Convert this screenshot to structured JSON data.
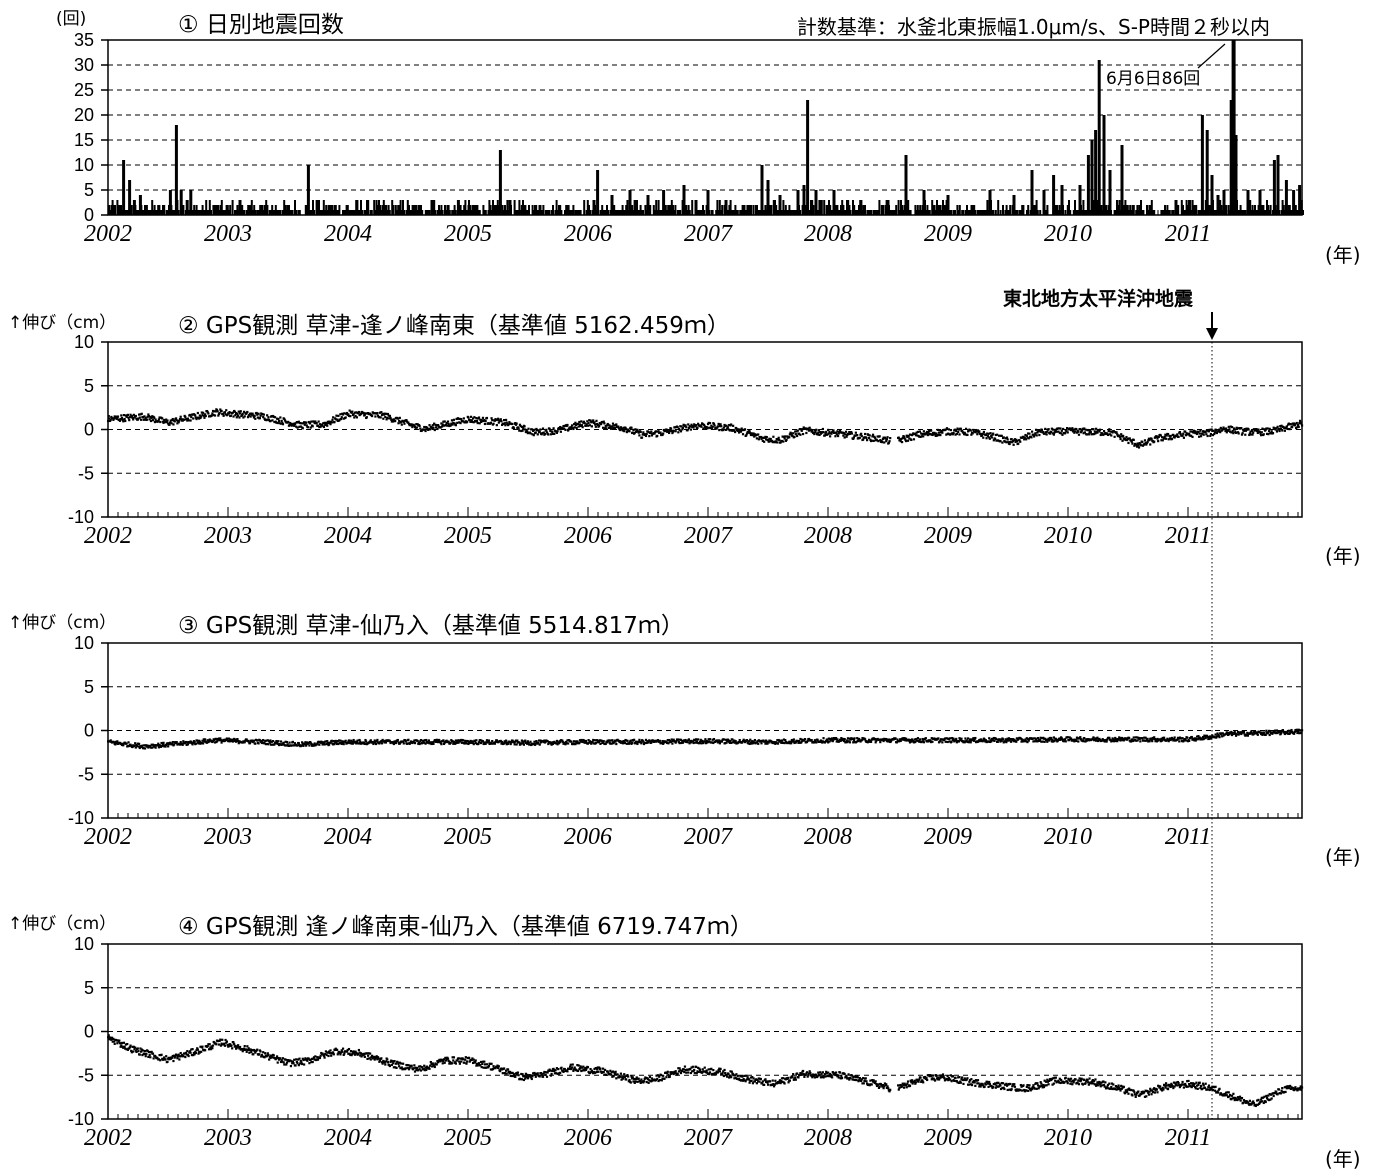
{
  "chart_data": [
    {
      "type": "bar",
      "title": "① 日別地震回数",
      "ylabel": "(回)",
      "xunit": "(年)",
      "note": "計数基準：水釜北東振幅1.0μm/s、S-P時間２秒以内",
      "annotation": "6月6日86回",
      "xlim": [
        2002.0,
        2011.95
      ],
      "ylim": [
        0,
        35
      ],
      "yticks": [
        0,
        5,
        10,
        15,
        20,
        25,
        30,
        35
      ],
      "x_tick_labels": [
        "2002",
        "2003",
        "2004",
        "2005",
        "2006",
        "2007",
        "2008",
        "2009",
        "2010",
        "2011"
      ],
      "grid": true,
      "points": [
        [
          2002.13,
          11
        ],
        [
          2002.18,
          7
        ],
        [
          2002.22,
          3
        ],
        [
          2002.27,
          4
        ],
        [
          2002.32,
          2
        ],
        [
          2002.52,
          5
        ],
        [
          2002.57,
          18
        ],
        [
          2002.61,
          5
        ],
        [
          2002.66,
          3
        ],
        [
          2002.69,
          5
        ],
        [
          2002.9,
          2
        ],
        [
          2003.0,
          1
        ],
        [
          2003.1,
          3
        ],
        [
          2003.25,
          1
        ],
        [
          2003.5,
          2
        ],
        [
          2003.67,
          10
        ],
        [
          2003.75,
          3
        ],
        [
          2003.85,
          2
        ],
        [
          2004.3,
          2
        ],
        [
          2004.55,
          2
        ],
        [
          2004.7,
          3
        ],
        [
          2004.92,
          3
        ],
        [
          2005.05,
          2
        ],
        [
          2005.27,
          13
        ],
        [
          2005.35,
          3
        ],
        [
          2005.6,
          2
        ],
        [
          2005.9,
          1
        ],
        [
          2006.05,
          3
        ],
        [
          2006.08,
          9
        ],
        [
          2006.2,
          4
        ],
        [
          2006.35,
          5
        ],
        [
          2006.5,
          4
        ],
        [
          2006.63,
          5
        ],
        [
          2006.8,
          6
        ],
        [
          2006.9,
          3
        ],
        [
          2007.0,
          5
        ],
        [
          2007.15,
          3
        ],
        [
          2007.3,
          2
        ],
        [
          2007.45,
          10
        ],
        [
          2007.5,
          7
        ],
        [
          2007.6,
          4
        ],
        [
          2007.75,
          5
        ],
        [
          2007.8,
          6
        ],
        [
          2007.83,
          23
        ],
        [
          2007.9,
          5
        ],
        [
          2008.05,
          5
        ],
        [
          2008.3,
          2
        ],
        [
          2008.5,
          3
        ],
        [
          2008.65,
          12
        ],
        [
          2008.8,
          5
        ],
        [
          2009.0,
          4
        ],
        [
          2009.2,
          2
        ],
        [
          2009.35,
          5
        ],
        [
          2009.55,
          4
        ],
        [
          2009.7,
          9
        ],
        [
          2009.8,
          5
        ],
        [
          2009.88,
          8
        ],
        [
          2009.95,
          6
        ],
        [
          2010.1,
          6
        ],
        [
          2010.17,
          12
        ],
        [
          2010.2,
          15
        ],
        [
          2010.23,
          17
        ],
        [
          2010.26,
          31
        ],
        [
          2010.3,
          20
        ],
        [
          2010.35,
          9
        ],
        [
          2010.45,
          14
        ],
        [
          2010.6,
          2
        ],
        [
          2010.9,
          3
        ],
        [
          2011.0,
          2
        ],
        [
          2011.12,
          20
        ],
        [
          2011.16,
          17
        ],
        [
          2011.2,
          8
        ],
        [
          2011.25,
          4
        ],
        [
          2011.3,
          5
        ],
        [
          2011.36,
          23
        ],
        [
          2011.4,
          16
        ],
        [
          2011.5,
          5
        ],
        [
          2011.6,
          5
        ],
        [
          2011.72,
          11
        ],
        [
          2011.75,
          12
        ],
        [
          2011.82,
          7
        ],
        [
          2011.88,
          5
        ],
        [
          2011.93,
          6
        ]
      ],
      "clipped_bar": {
        "x": 2011.38,
        "value": 86
      }
    },
    {
      "type": "scatter",
      "title": "② GPS観測 草津-逢ノ峰南東（基準値 5162.459ｍ）",
      "ylabel": "↑伸び（cm）",
      "xunit": "(年)",
      "event_label": "東北地方太平洋沖地震",
      "event_x": 2011.2,
      "xlim": [
        2002.0,
        2011.95
      ],
      "ylim": [
        -10,
        10
      ],
      "yticks": [
        -10,
        -5,
        0,
        5,
        10
      ],
      "x_tick_labels": [
        "2002",
        "2003",
        "2004",
        "2005",
        "2006",
        "2007",
        "2008",
        "2009",
        "2010",
        "2011"
      ],
      "grid": true,
      "series_trend": [
        [
          2002.0,
          1.2
        ],
        [
          2002.3,
          1.5
        ],
        [
          2002.5,
          0.8
        ],
        [
          2002.9,
          2.0
        ],
        [
          2003.3,
          1.5
        ],
        [
          2003.6,
          0.5
        ],
        [
          2003.8,
          0.6
        ],
        [
          2004.0,
          1.8
        ],
        [
          2004.3,
          1.6
        ],
        [
          2004.55,
          0.4
        ],
        [
          2004.65,
          0.1
        ],
        [
          2005.0,
          1.2
        ],
        [
          2005.3,
          0.8
        ],
        [
          2005.55,
          -0.3
        ],
        [
          2005.75,
          -0.1
        ],
        [
          2006.0,
          0.8
        ],
        [
          2006.3,
          0.2
        ],
        [
          2006.45,
          -0.6
        ],
        [
          2006.6,
          -0.4
        ],
        [
          2006.9,
          0.5
        ],
        [
          2007.2,
          0.2
        ],
        [
          2007.45,
          -1.0
        ],
        [
          2007.6,
          -1.2
        ],
        [
          2007.8,
          -0.1
        ],
        [
          2008.1,
          -0.5
        ],
        [
          2008.4,
          -1.0
        ],
        [
          2008.55,
          -1.4
        ],
        [
          2008.75,
          -0.6
        ],
        [
          2009.0,
          -0.2
        ],
        [
          2009.2,
          -0.3
        ],
        [
          2009.4,
          -0.9
        ],
        [
          2009.55,
          -1.5
        ],
        [
          2009.75,
          -0.3
        ],
        [
          2010.0,
          -0.2
        ],
        [
          2010.35,
          -0.3
        ],
        [
          2010.5,
          -1.2
        ],
        [
          2010.6,
          -1.8
        ],
        [
          2010.75,
          -1.0
        ],
        [
          2011.0,
          -0.5
        ],
        [
          2011.18,
          -0.4
        ],
        [
          2011.3,
          0.1
        ],
        [
          2011.45,
          -0.2
        ],
        [
          2011.55,
          -0.3
        ],
        [
          2011.7,
          -0.2
        ],
        [
          2011.95,
          0.7
        ]
      ]
    },
    {
      "type": "scatter",
      "title": "③ GPS観測 草津-仙乃入（基準値 5514.817ｍ）",
      "ylabel": "↑伸び（cm）",
      "xunit": "(年)",
      "xlim": [
        2002.0,
        2011.95
      ],
      "ylim": [
        -10,
        10
      ],
      "yticks": [
        -10,
        -5,
        0,
        5,
        10
      ],
      "x_tick_labels": [
        "2002",
        "2003",
        "2004",
        "2005",
        "2006",
        "2007",
        "2008",
        "2009",
        "2010",
        "2011"
      ],
      "grid": true,
      "series_trend": [
        [
          2002.0,
          -1.3
        ],
        [
          2002.3,
          -1.8
        ],
        [
          2002.6,
          -1.5
        ],
        [
          2002.9,
          -1.1
        ],
        [
          2003.3,
          -1.3
        ],
        [
          2003.6,
          -1.6
        ],
        [
          2004.0,
          -1.3
        ],
        [
          2004.5,
          -1.3
        ],
        [
          2005.0,
          -1.3
        ],
        [
          2005.5,
          -1.4
        ],
        [
          2006.0,
          -1.3
        ],
        [
          2006.5,
          -1.3
        ],
        [
          2007.0,
          -1.2
        ],
        [
          2007.5,
          -1.3
        ],
        [
          2008.0,
          -1.1
        ],
        [
          2008.5,
          -1.1
        ],
        [
          2009.0,
          -1.1
        ],
        [
          2009.5,
          -1.1
        ],
        [
          2010.0,
          -1.0
        ],
        [
          2010.5,
          -1.0
        ],
        [
          2011.0,
          -1.0
        ],
        [
          2011.2,
          -0.7
        ],
        [
          2011.3,
          -0.4
        ],
        [
          2011.6,
          -0.3
        ],
        [
          2011.95,
          -0.1
        ]
      ]
    },
    {
      "type": "scatter",
      "title": "④ GPS観測 逢ノ峰南東-仙乃入（基準値 6719.747ｍ）",
      "ylabel": "↑伸び（cm）",
      "xunit": "(年)",
      "xlim": [
        2002.0,
        2011.95
      ],
      "ylim": [
        -10,
        10
      ],
      "yticks": [
        -10,
        -5,
        0,
        5,
        10
      ],
      "x_tick_labels": [
        "2002",
        "2003",
        "2004",
        "2005",
        "2006",
        "2007",
        "2008",
        "2009",
        "2010",
        "2011"
      ],
      "grid": true,
      "series_trend": [
        [
          2002.0,
          -0.7
        ],
        [
          2002.2,
          -2.0
        ],
        [
          2002.5,
          -3.2
        ],
        [
          2002.7,
          -2.4
        ],
        [
          2002.95,
          -1.2
        ],
        [
          2003.2,
          -2.2
        ],
        [
          2003.5,
          -3.6
        ],
        [
          2003.65,
          -3.4
        ],
        [
          2003.9,
          -2.2
        ],
        [
          2004.1,
          -2.5
        ],
        [
          2004.4,
          -3.8
        ],
        [
          2004.6,
          -4.3
        ],
        [
          2004.8,
          -3.3
        ],
        [
          2005.0,
          -3.3
        ],
        [
          2005.2,
          -4.0
        ],
        [
          2005.45,
          -5.2
        ],
        [
          2005.6,
          -5.0
        ],
        [
          2005.85,
          -4.1
        ],
        [
          2006.1,
          -4.5
        ],
        [
          2006.4,
          -5.6
        ],
        [
          2006.55,
          -5.5
        ],
        [
          2006.8,
          -4.3
        ],
        [
          2007.1,
          -4.6
        ],
        [
          2007.35,
          -5.5
        ],
        [
          2007.55,
          -6.0
        ],
        [
          2007.8,
          -4.8
        ],
        [
          2008.1,
          -5.0
        ],
        [
          2008.4,
          -6.0
        ],
        [
          2008.55,
          -6.6
        ],
        [
          2008.8,
          -5.4
        ],
        [
          2008.95,
          -5.2
        ],
        [
          2009.2,
          -5.8
        ],
        [
          2009.5,
          -6.3
        ],
        [
          2009.65,
          -6.5
        ],
        [
          2009.9,
          -5.6
        ],
        [
          2010.2,
          -5.7
        ],
        [
          2010.45,
          -6.6
        ],
        [
          2010.6,
          -7.3
        ],
        [
          2010.8,
          -6.3
        ],
        [
          2011.0,
          -6.0
        ],
        [
          2011.18,
          -6.4
        ],
        [
          2011.35,
          -7.3
        ],
        [
          2011.55,
          -8.4
        ],
        [
          2011.7,
          -7.3
        ],
        [
          2011.8,
          -6.6
        ],
        [
          2011.95,
          -6.5
        ]
      ]
    }
  ]
}
